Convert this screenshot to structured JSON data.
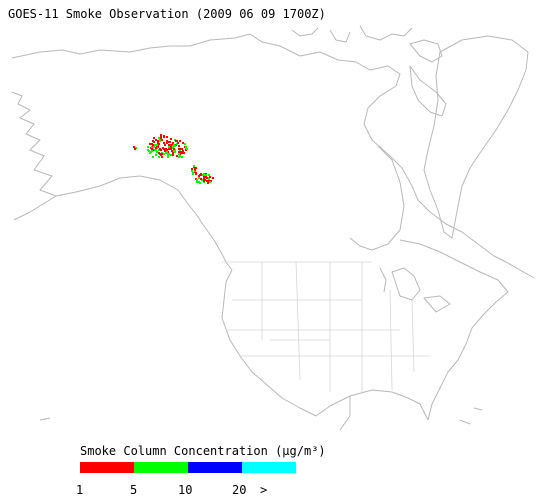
{
  "title": "GOES-11 Smoke Observation (2009 06 09  1700Z)",
  "legend": {
    "title": "Smoke Column Concentration (μg/m³)",
    "labels": [
      "1",
      "5",
      "10",
      "20",
      ">"
    ],
    "colors": [
      "#ff0000",
      "#00ff00",
      "#0000ff",
      "#00ffff"
    ]
  }
}
